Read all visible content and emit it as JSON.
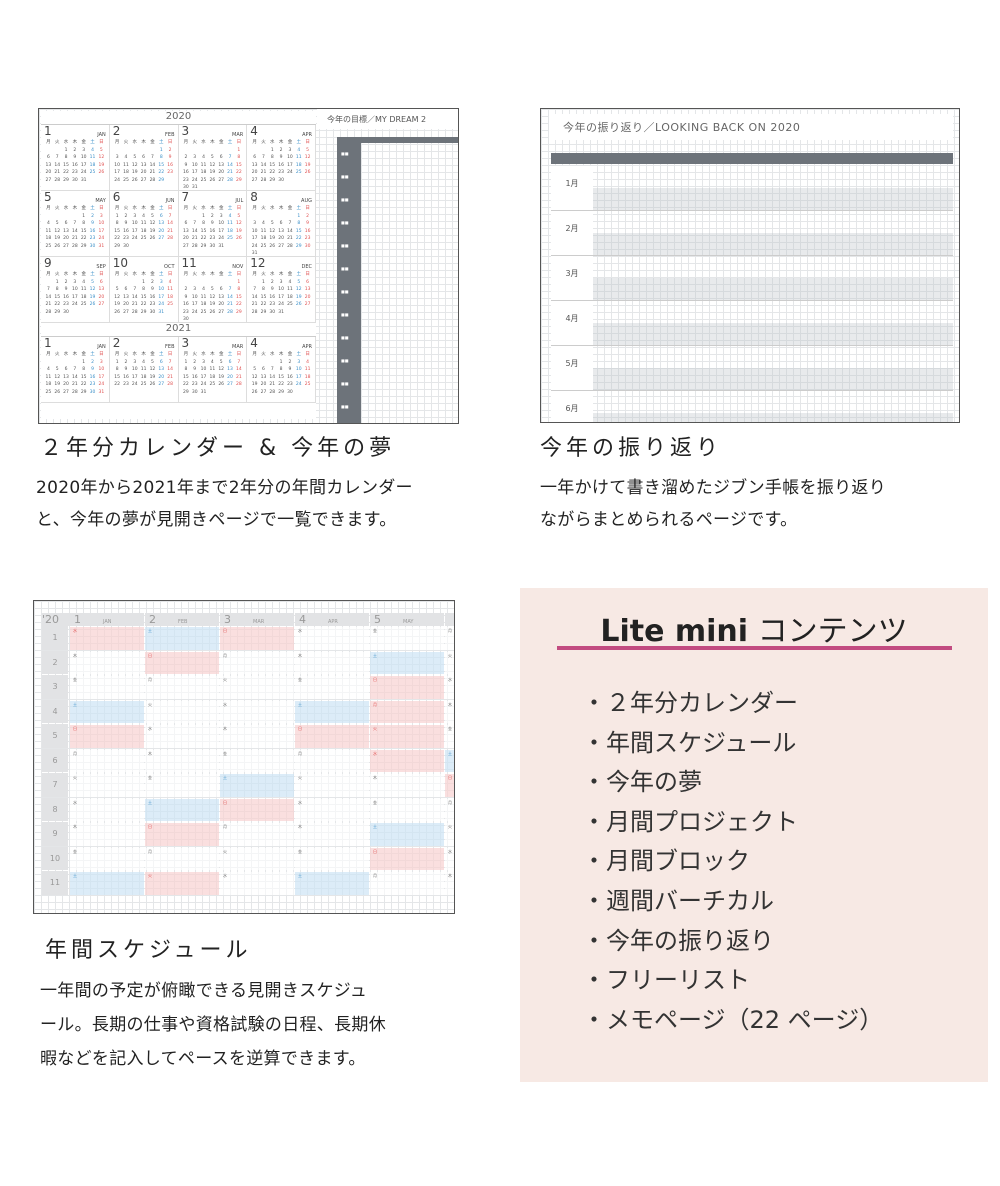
{
  "sections": [
    {
      "title": "２年分カレンダー & 今年の夢",
      "desc": [
        "2020年から2021年まで2年分の年間カレンダー",
        "と、今年の夢が見開きページで一覧できます。"
      ]
    },
    {
      "title": "今年の振り返り",
      "desc": [
        "一年かけて書き溜めたジブン手帳を振り返り",
        "ながらまとめられるページです。"
      ]
    },
    {
      "title": "年間スケジュール",
      "desc": [
        "一年間の予定が俯瞰できる見開きスケジュ",
        "ール。長期の仕事や資格試験の日程、長期休",
        "暇などを記入してペースを逆算できます。"
      ]
    }
  ],
  "thumb_calendar": {
    "years": [
      "2020",
      "2021"
    ],
    "months": [
      [
        "1",
        "JAN"
      ],
      [
        "2",
        "FEB"
      ],
      [
        "3",
        "MAR"
      ],
      [
        "4",
        "APR"
      ],
      [
        "5",
        "MAY"
      ],
      [
        "6",
        "JUN"
      ],
      [
        "7",
        "JUL"
      ],
      [
        "8",
        "AUG"
      ],
      [
        "9",
        "SEP"
      ],
      [
        "10",
        "OCT"
      ],
      [
        "11",
        "NOV"
      ],
      [
        "12",
        "DEC"
      ]
    ],
    "dream_title": "今年の目標／MY DREAM 2"
  },
  "thumb_review": {
    "title": "今年の振り返り／LOOKING BACK ON 2020",
    "months": [
      "1月",
      "2月",
      "3月",
      "4月",
      "5月",
      "6月"
    ]
  },
  "thumb_schedule": {
    "year": "'20",
    "months": [
      [
        "1",
        "JAN"
      ],
      [
        "2",
        "FEB"
      ],
      [
        "3",
        "MAR"
      ],
      [
        "4",
        "APR"
      ],
      [
        "5",
        "MAY"
      ]
    ],
    "days": [
      "1",
      "2",
      "3",
      "4",
      "5",
      "6",
      "7",
      "8",
      "9",
      "10",
      "11"
    ]
  },
  "colors": {
    "holiday": "#f8dada",
    "saturday": "#d9ebf7",
    "accent": "#c24b80",
    "panel": "#f7e9e4",
    "header": "#6d737a"
  },
  "contents": {
    "title_bold": "Lite mini",
    "title_rest": " コンテンツ",
    "items": [
      "・２年分カレンダー",
      "・年間スケジュール",
      "・今年の夢",
      "・月間プロジェクト",
      "・月間ブロック",
      "・週間バーチカル",
      "・今年の振り返り",
      "・フリーリスト",
      "・メモページ（22 ページ）"
    ]
  }
}
